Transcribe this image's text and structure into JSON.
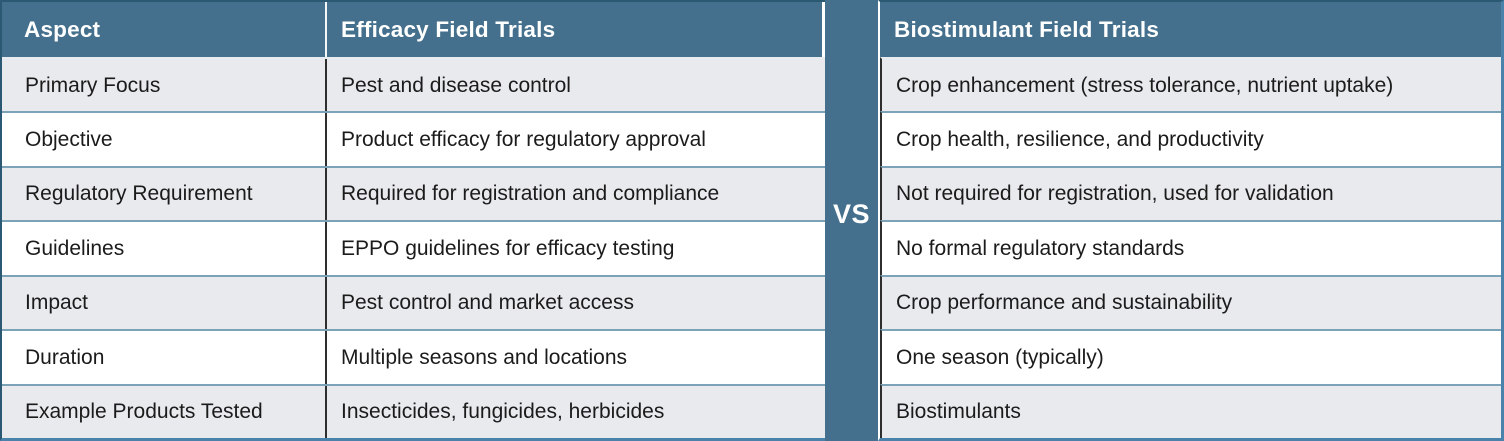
{
  "divider": {
    "label": "VS"
  },
  "left_table": {
    "headers": {
      "aspect": "Aspect",
      "efficacy": "Efficacy Field Trials"
    },
    "rows": [
      [
        "Primary Focus",
        "Pest and disease control"
      ],
      [
        "Objective",
        "Product efficacy for regulatory approval"
      ],
      [
        "Regulatory Requirement",
        "Required for registration and compliance"
      ],
      [
        "Guidelines",
        "EPPO guidelines for efficacy testing"
      ],
      [
        "Impact",
        "Pest control and market access"
      ],
      [
        "Duration",
        "Multiple seasons and locations"
      ],
      [
        "Example Products Tested",
        "Insecticides, fungicides, herbicides"
      ]
    ]
  },
  "right_table": {
    "header": "Biostimulant Field Trials",
    "rows": [
      "Crop enhancement (stress tolerance, nutrient uptake)",
      "Crop health, resilience, and productivity",
      "Not required for registration, used for validation",
      "No formal regulatory standards",
      "Crop performance and sustainability",
      "One season (typically)",
      "Biostimulants"
    ]
  },
  "colors": {
    "header_background": "#44708d",
    "divider_background": "#44708d",
    "row_alternate_background": "#e8eaed",
    "row_background": "#ffffff",
    "outer_border_dark": "#2b5873",
    "outer_border_blue": "#4983ab",
    "row_separator": "#7ba2b6",
    "column_separator": "#2e2e2e",
    "header_text": "#ffffff",
    "body_text": "#1b1b1b"
  }
}
